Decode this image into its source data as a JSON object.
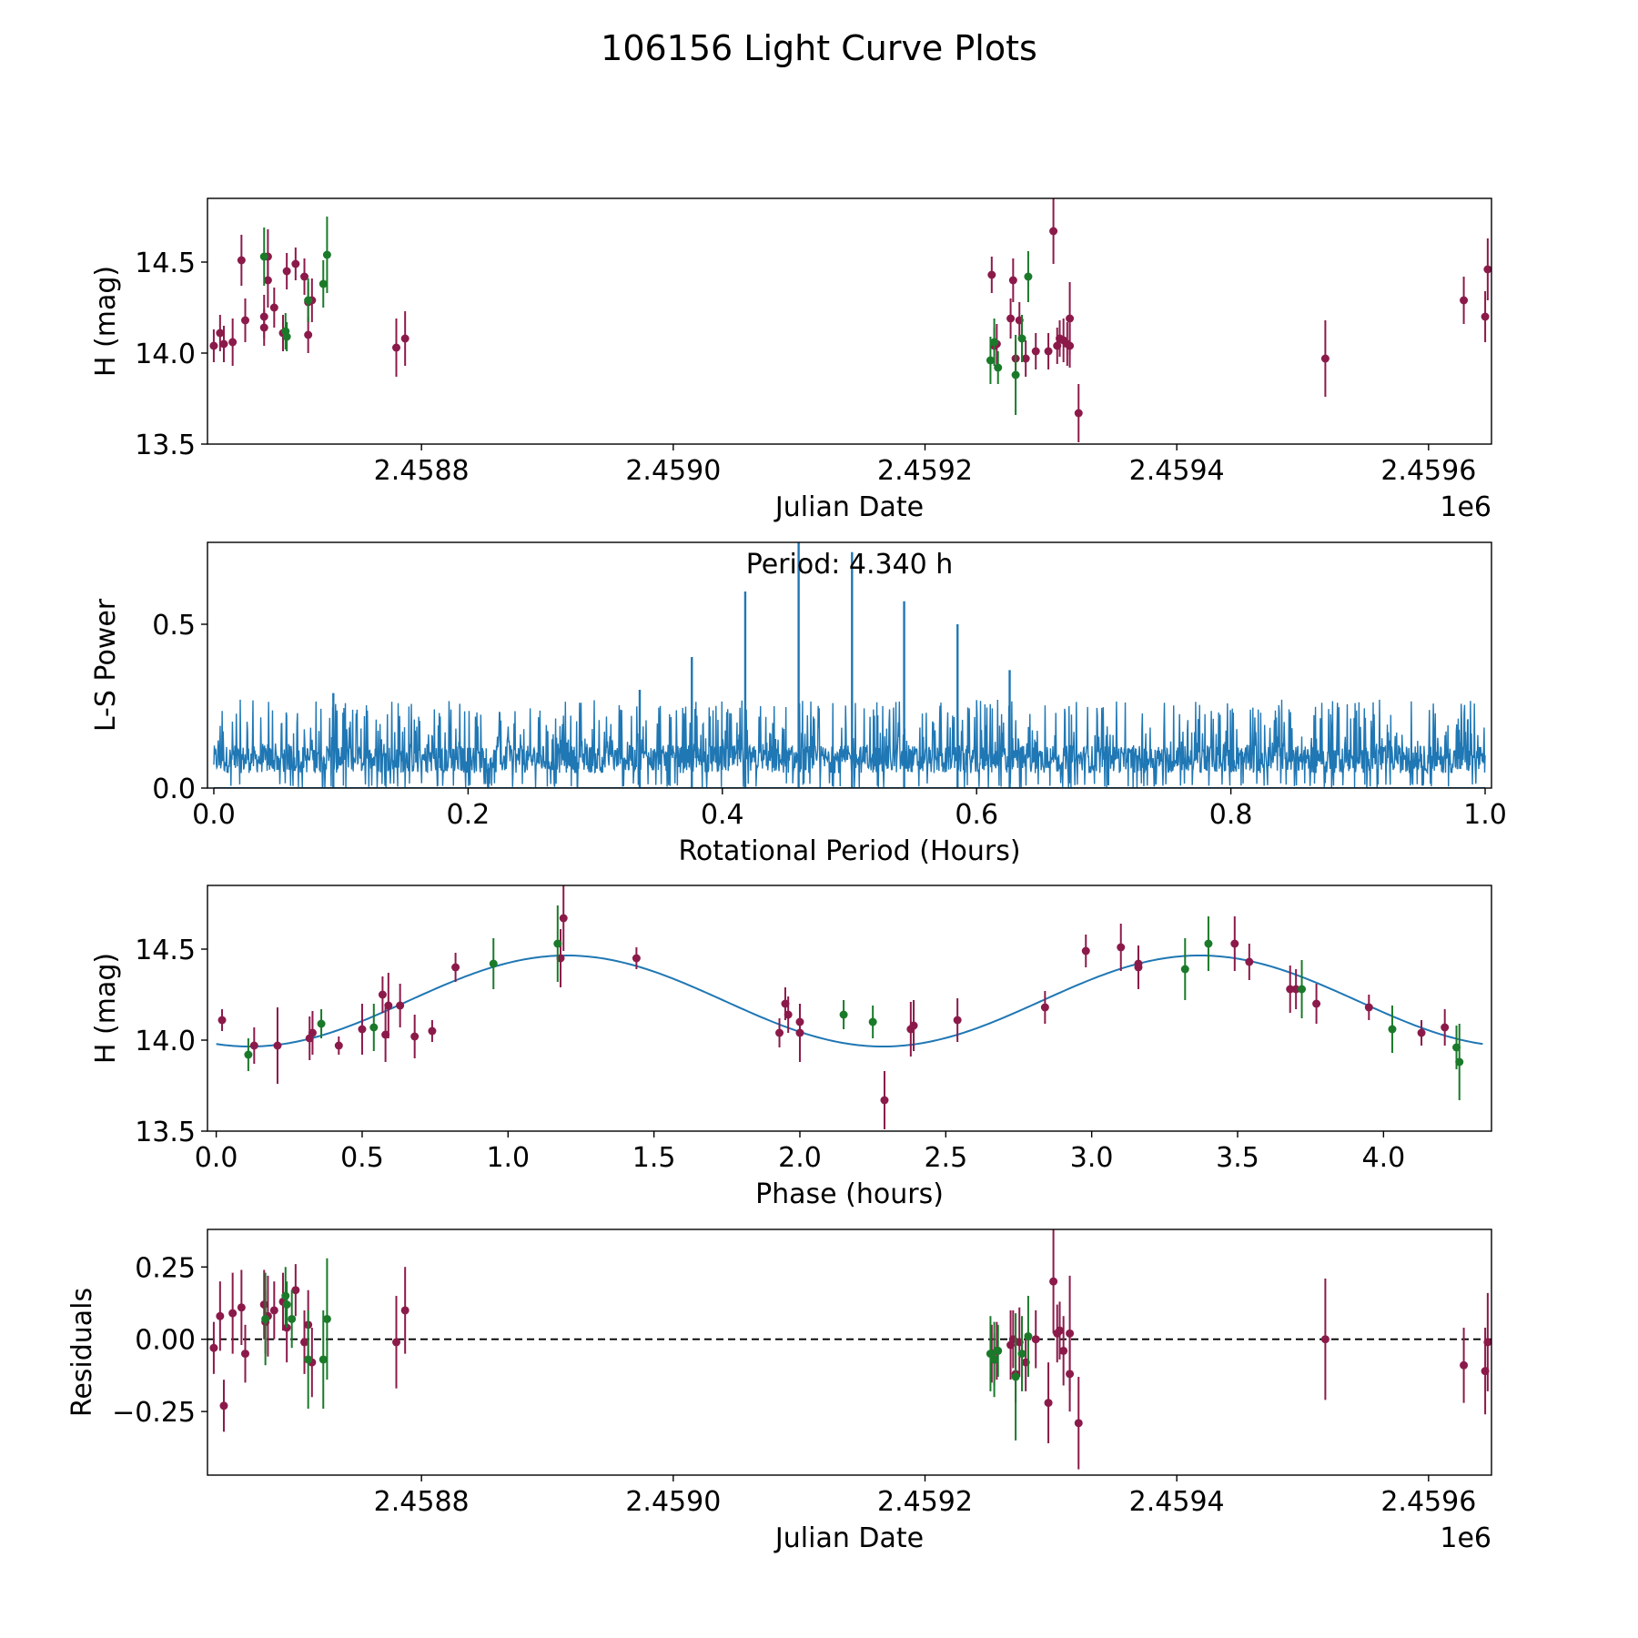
{
  "figure_title": "106156 Light Curve Plots",
  "colors": {
    "maroon": "#8b1a4a",
    "green": "#1a7a2a",
    "fit": "#1f77b4",
    "axes": "#000000"
  },
  "chart_data": [
    {
      "id": "lightcurve",
      "type": "scatter",
      "title": "",
      "xlabel": "Julian Date",
      "ylabel": "H (mag)",
      "x_offset_label": "1e6",
      "xlim": [
        2.45863,
        2.45965
      ],
      "ylim": [
        13.5,
        14.85
      ],
      "xticks": [
        2.4588,
        2.459,
        2.4592,
        2.4594,
        2.4596
      ],
      "xtick_labels": [
        "2.4588",
        "2.4590",
        "2.4592",
        "2.4594",
        "2.4596"
      ],
      "yticks": [
        13.5,
        14.0,
        14.5
      ],
      "ytick_labels": [
        "13.5",
        "14.0",
        "14.5"
      ],
      "series": [
        {
          "name": "maroon",
          "points": [
            [
              2.458635,
              14.04,
              0.09
            ],
            [
              2.45864,
              14.11,
              0.1
            ],
            [
              2.458643,
              14.05,
              0.1
            ],
            [
              2.45865,
              14.06,
              0.13
            ],
            [
              2.458657,
              14.51,
              0.14
            ],
            [
              2.45866,
              14.18,
              0.12
            ],
            [
              2.458675,
              14.14,
              0.1
            ],
            [
              2.458675,
              14.2,
              0.12
            ],
            [
              2.458678,
              14.4,
              0.15
            ],
            [
              2.458678,
              14.53,
              0.15
            ],
            [
              2.458683,
              14.25,
              0.11
            ],
            [
              2.45869,
              14.11,
              0.1
            ],
            [
              2.458693,
              14.45,
              0.1
            ],
            [
              2.4587,
              14.49,
              0.09
            ],
            [
              2.458707,
              14.42,
              0.1
            ],
            [
              2.45871,
              14.1,
              0.1
            ],
            [
              2.45871,
              14.28,
              0.11
            ],
            [
              2.458713,
              14.29,
              0.12
            ],
            [
              2.45878,
              14.03,
              0.16
            ],
            [
              2.458787,
              14.08,
              0.15
            ],
            [
              2.459253,
              14.43,
              0.1
            ],
            [
              2.459255,
              14.04,
              0.1
            ],
            [
              2.459257,
              14.05,
              0.11
            ],
            [
              2.459268,
              14.19,
              0.11
            ],
            [
              2.45927,
              14.4,
              0.12
            ],
            [
              2.459272,
              13.97,
              0.1
            ],
            [
              2.459275,
              14.18,
              0.1
            ],
            [
              2.45928,
              13.97,
              0.1
            ],
            [
              2.459288,
              14.01,
              0.1
            ],
            [
              2.459298,
              14.01,
              0.1
            ],
            [
              2.459302,
              14.67,
              0.18
            ],
            [
              2.459305,
              14.04,
              0.1
            ],
            [
              2.459307,
              14.08,
              0.1
            ],
            [
              2.45931,
              14.07,
              0.12
            ],
            [
              2.459313,
              14.05,
              0.12
            ],
            [
              2.459315,
              14.04,
              0.12
            ],
            [
              2.459315,
              14.19,
              0.2
            ],
            [
              2.459322,
              13.67,
              0.16
            ],
            [
              2.459518,
              13.97,
              0.21
            ],
            [
              2.459628,
              14.29,
              0.13
            ],
            [
              2.459645,
              14.2,
              0.14
            ],
            [
              2.459647,
              14.46,
              0.17
            ]
          ]
        },
        {
          "name": "green",
          "points": [
            [
              2.458675,
              14.53,
              0.16
            ],
            [
              2.458692,
              14.12,
              0.1
            ],
            [
              2.458693,
              14.09,
              0.08
            ],
            [
              2.45871,
              14.29,
              0.12
            ],
            [
              2.458722,
              14.38,
              0.13
            ],
            [
              2.458725,
              14.54,
              0.21
            ],
            [
              2.459252,
              13.96,
              0.13
            ],
            [
              2.459255,
              14.06,
              0.13
            ],
            [
              2.459258,
              13.92,
              0.09
            ],
            [
              2.459272,
              13.88,
              0.22
            ],
            [
              2.459277,
              14.08,
              0.13
            ],
            [
              2.459282,
              14.42,
              0.14
            ]
          ]
        }
      ]
    },
    {
      "id": "periodogram",
      "type": "line",
      "title": "",
      "xlabel": "Rotational Period (Hours)",
      "ylabel": "L-S Power",
      "xlim": [
        -0.005,
        1.005
      ],
      "ylim": [
        0,
        0.75
      ],
      "xticks": [
        0.0,
        0.2,
        0.4,
        0.6,
        0.8,
        1.0
      ],
      "xtick_labels": [
        "0.0",
        "0.2",
        "0.4",
        "0.6",
        "0.8",
        "1.0"
      ],
      "yticks": [
        0.0,
        0.5
      ],
      "ytick_labels": [
        "0.0",
        "0.5"
      ],
      "annotation": "Period: 4.340 h",
      "noise_baseline": 0.13,
      "noise_peak_max": 0.27,
      "peaks": [
        [
          0.376,
          0.4
        ],
        [
          0.418,
          0.6
        ],
        [
          0.46,
          0.75
        ],
        [
          0.502,
          0.72
        ],
        [
          0.543,
          0.57
        ],
        [
          0.585,
          0.5
        ],
        [
          0.626,
          0.36
        ],
        [
          0.335,
          0.3
        ],
        [
          0.094,
          0.29
        ]
      ]
    },
    {
      "id": "phased",
      "type": "scatter",
      "title": "",
      "xlabel": "Phase (hours)",
      "ylabel": "H (mag)",
      "xlim": [
        -0.03,
        4.37
      ],
      "ylim": [
        13.5,
        14.85
      ],
      "xticks": [
        0.0,
        0.5,
        1.0,
        1.5,
        2.0,
        2.5,
        3.0,
        3.5,
        4.0
      ],
      "xtick_labels": [
        "0.0",
        "0.5",
        "1.0",
        "1.5",
        "2.0",
        "2.5",
        "3.0",
        "3.5",
        "4.0"
      ],
      "yticks": [
        13.5,
        14.0,
        14.5
      ],
      "ytick_labels": [
        "13.5",
        "14.0",
        "14.5"
      ],
      "fit": {
        "period": 4.34,
        "mean": 14.215,
        "amplitude": 0.25,
        "peak_phase": 1.2
      },
      "series": [
        {
          "name": "maroon",
          "points": [
            [
              0.02,
              14.11,
              0.06
            ],
            [
              0.13,
              13.97,
              0.1
            ],
            [
              0.21,
              13.97,
              0.21
            ],
            [
              0.32,
              14.01,
              0.12
            ],
            [
              0.33,
              14.04,
              0.12
            ],
            [
              0.42,
              13.97,
              0.05
            ],
            [
              0.5,
              14.06,
              0.14
            ],
            [
              0.57,
              14.25,
              0.1
            ],
            [
              0.58,
              14.03,
              0.15
            ],
            [
              0.59,
              14.19,
              0.18
            ],
            [
              0.63,
              14.19,
              0.12
            ],
            [
              0.68,
              14.02,
              0.12
            ],
            [
              0.74,
              14.05,
              0.06
            ],
            [
              0.82,
              14.4,
              0.08
            ],
            [
              1.18,
              14.45,
              0.16
            ],
            [
              1.19,
              14.67,
              0.18
            ],
            [
              1.44,
              14.45,
              0.06
            ],
            [
              1.93,
              14.04,
              0.08
            ],
            [
              1.95,
              14.2,
              0.09
            ],
            [
              1.96,
              14.14,
              0.1
            ],
            [
              2.0,
              14.1,
              0.1
            ],
            [
              2.0,
              14.04,
              0.16
            ],
            [
              2.29,
              13.67,
              0.16
            ],
            [
              2.38,
              14.06,
              0.15
            ],
            [
              2.39,
              14.08,
              0.14
            ],
            [
              2.54,
              14.11,
              0.12
            ],
            [
              2.84,
              14.18,
              0.09
            ],
            [
              2.98,
              14.49,
              0.09
            ],
            [
              3.1,
              14.51,
              0.13
            ],
            [
              3.16,
              14.42,
              0.1
            ],
            [
              3.16,
              14.4,
              0.12
            ],
            [
              3.49,
              14.53,
              0.15
            ],
            [
              3.54,
              14.43,
              0.1
            ],
            [
              3.68,
              14.28,
              0.13
            ],
            [
              3.7,
              14.28,
              0.11
            ],
            [
              3.77,
              14.2,
              0.11
            ],
            [
              3.95,
              14.18,
              0.07
            ],
            [
              4.13,
              14.04,
              0.07
            ],
            [
              4.21,
              14.07,
              0.1
            ]
          ]
        },
        {
          "name": "green",
          "points": [
            [
              0.11,
              13.92,
              0.09
            ],
            [
              0.36,
              14.09,
              0.08
            ],
            [
              0.54,
              14.07,
              0.13
            ],
            [
              0.95,
              14.42,
              0.14
            ],
            [
              1.17,
              14.53,
              0.21
            ],
            [
              2.15,
              14.14,
              0.08
            ],
            [
              2.25,
              14.1,
              0.09
            ],
            [
              3.32,
              14.39,
              0.17
            ],
            [
              3.4,
              14.53,
              0.15
            ],
            [
              3.72,
              14.28,
              0.16
            ],
            [
              4.03,
              14.06,
              0.13
            ],
            [
              4.25,
              13.96,
              0.12
            ],
            [
              4.26,
              13.88,
              0.21
            ]
          ]
        }
      ]
    },
    {
      "id": "residuals",
      "type": "scatter",
      "title": "",
      "xlabel": "Julian Date",
      "ylabel": "Residuals",
      "x_offset_label": "1e6",
      "xlim": [
        2.45863,
        2.45965
      ],
      "ylim": [
        -0.47,
        0.38
      ],
      "xticks": [
        2.4588,
        2.459,
        2.4592,
        2.4594,
        2.4596
      ],
      "xtick_labels": [
        "2.4588",
        "2.4590",
        "2.4592",
        "2.4594",
        "2.4596"
      ],
      "yticks": [
        -0.25,
        0.0,
        0.25
      ],
      "ytick_labels": [
        "−0.25",
        "0.00",
        "0.25"
      ],
      "reference_line": 0.0,
      "series": [
        {
          "name": "maroon",
          "points": [
            [
              2.458635,
              -0.03,
              0.09
            ],
            [
              2.45864,
              0.08,
              0.12
            ],
            [
              2.458643,
              -0.23,
              0.09
            ],
            [
              2.45865,
              0.09,
              0.14
            ],
            [
              2.458657,
              0.11,
              0.13
            ],
            [
              2.45866,
              -0.05,
              0.1
            ],
            [
              2.458675,
              0.12,
              0.12
            ],
            [
              2.458676,
              0.06,
              0.11
            ],
            [
              2.458678,
              0.08,
              0.14
            ],
            [
              2.458683,
              0.1,
              0.1
            ],
            [
              2.45869,
              0.13,
              0.1
            ],
            [
              2.458693,
              0.04,
              0.12
            ],
            [
              2.4587,
              0.17,
              0.09
            ],
            [
              2.458707,
              -0.01,
              0.11
            ],
            [
              2.45871,
              0.05,
              0.12
            ],
            [
              2.458713,
              -0.08,
              0.12
            ],
            [
              2.45878,
              -0.01,
              0.16
            ],
            [
              2.458787,
              0.1,
              0.15
            ],
            [
              2.459253,
              -0.05,
              0.1
            ],
            [
              2.459255,
              -0.07,
              0.09
            ],
            [
              2.459257,
              -0.04,
              0.1
            ],
            [
              2.459268,
              -0.02,
              0.12
            ],
            [
              2.45927,
              0.0,
              0.1
            ],
            [
              2.459272,
              -0.12,
              0.1
            ],
            [
              2.459275,
              -0.01,
              0.12
            ],
            [
              2.45928,
              -0.08,
              0.1
            ],
            [
              2.459288,
              0.0,
              0.1
            ],
            [
              2.459298,
              -0.22,
              0.14
            ],
            [
              2.459302,
              0.2,
              0.18
            ],
            [
              2.459305,
              0.02,
              0.1
            ],
            [
              2.459307,
              0.03,
              0.1
            ],
            [
              2.45931,
              -0.04,
              0.12
            ],
            [
              2.459315,
              -0.12,
              0.13
            ],
            [
              2.459315,
              0.02,
              0.2
            ],
            [
              2.459322,
              -0.29,
              0.16
            ],
            [
              2.459518,
              0.0,
              0.21
            ],
            [
              2.459628,
              -0.09,
              0.13
            ],
            [
              2.459645,
              -0.11,
              0.15
            ],
            [
              2.459647,
              -0.01,
              0.17
            ]
          ]
        },
        {
          "name": "green",
          "points": [
            [
              2.458676,
              0.07,
              0.16
            ],
            [
              2.458692,
              0.15,
              0.1
            ],
            [
              2.458693,
              0.12,
              0.08
            ],
            [
              2.458697,
              0.07,
              0.1
            ],
            [
              2.45871,
              -0.07,
              0.17
            ],
            [
              2.458722,
              -0.07,
              0.17
            ],
            [
              2.458725,
              0.07,
              0.21
            ],
            [
              2.459252,
              -0.05,
              0.13
            ],
            [
              2.459255,
              -0.07,
              0.13
            ],
            [
              2.459258,
              -0.04,
              0.09
            ],
            [
              2.459272,
              -0.13,
              0.22
            ],
            [
              2.459277,
              -0.05,
              0.13
            ],
            [
              2.459282,
              0.01,
              0.14
            ]
          ]
        }
      ]
    }
  ]
}
